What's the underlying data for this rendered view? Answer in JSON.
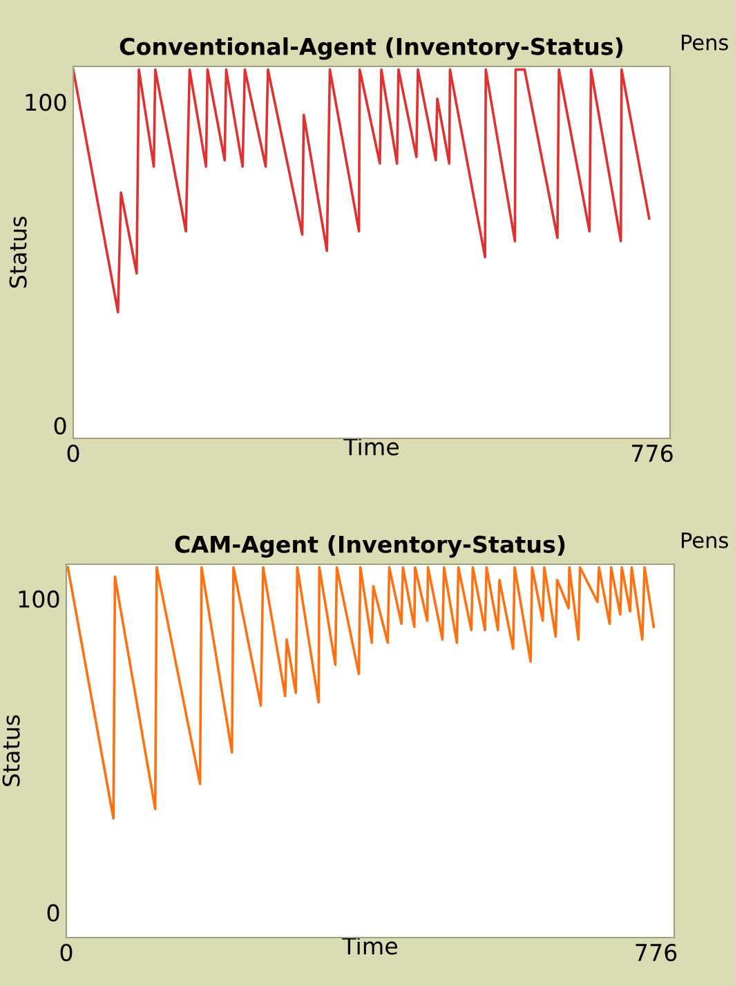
{
  "chart_data": [
    {
      "type": "line",
      "title": "Conventional-Agent (Inventory-Status)",
      "xlabel": "Time",
      "ylabel": "Status",
      "annotations": [
        "Pens"
      ],
      "xlim": [
        0,
        800
      ],
      "ylim": [
        -4,
        111
      ],
      "xticks": [
        0,
        776
      ],
      "yticks": [
        0,
        100
      ],
      "grid": false,
      "legend": false,
      "series": [
        {
          "color": "#e03030",
          "x": [
            0,
            60,
            64,
            85,
            88,
            108,
            110,
            151,
            156,
            178,
            180,
            203,
            205,
            227,
            230,
            258,
            261,
            307,
            309,
            340,
            344,
            383,
            384,
            411,
            413,
            434,
            436,
            460,
            462,
            486,
            488,
            504,
            505,
            552,
            553,
            592,
            593,
            605,
            649,
            651,
            692,
            694,
            734,
            735,
            772
          ],
          "values": [
            110,
            35,
            72,
            47,
            110,
            80,
            110,
            60,
            110,
            80,
            110,
            82,
            110,
            80,
            110,
            80,
            110,
            59,
            96,
            54,
            110,
            60,
            110,
            81,
            110,
            81,
            110,
            83,
            110,
            82,
            101,
            81,
            110,
            52,
            110,
            57,
            110,
            110,
            58,
            110,
            60,
            110,
            57,
            110,
            64
          ]
        }
      ]
    },
    {
      "type": "line",
      "title": "CAM-Agent (Inventory-Status)",
      "xlabel": "Time",
      "ylabel": "Status",
      "annotations": [
        "Pens"
      ],
      "xlim": [
        0,
        800
      ],
      "ylim": [
        -8,
        111
      ],
      "xticks": [
        0,
        776
      ],
      "yticks": [
        0,
        100
      ],
      "grid": false,
      "legend": false,
      "series": [
        {
          "color": "#ff7010",
          "x": [
            2,
            62,
            64,
            117,
            119,
            176,
            178,
            218,
            220,
            256,
            259,
            288,
            290,
            302,
            304,
            332,
            333,
            354,
            356,
            385,
            387,
            402,
            404,
            423,
            425,
            441,
            443,
            458,
            459,
            475,
            476,
            495,
            497,
            514,
            516,
            533,
            535,
            551,
            553,
            568,
            570,
            588,
            590,
            611,
            613,
            627,
            629,
            644,
            646,
            661,
            662,
            674,
            676,
            699,
            701,
            715,
            717,
            729,
            731,
            742,
            744,
            758,
            761,
            773
          ],
          "values": [
            110,
            30,
            107,
            33,
            110,
            41,
            110,
            51,
            110,
            66,
            110,
            69,
            87,
            70,
            110,
            67,
            110,
            79,
            110,
            76,
            110,
            86,
            104,
            86,
            110,
            92,
            110,
            91,
            110,
            93,
            110,
            87,
            110,
            86,
            110,
            90,
            110,
            90,
            110,
            90,
            106,
            84,
            110,
            80,
            110,
            93,
            110,
            88,
            106,
            97,
            110,
            87,
            110,
            99,
            110,
            92,
            110,
            95,
            110,
            96,
            110,
            87,
            110,
            91
          ]
        }
      ]
    }
  ]
}
